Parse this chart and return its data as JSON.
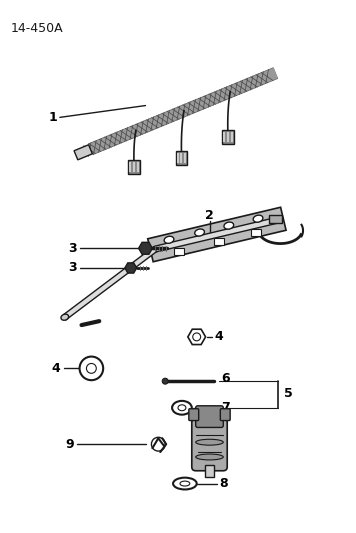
{
  "title": "14-450A",
  "background_color": "#ffffff",
  "line_color": "#1a1a1a",
  "part_color": "#aaaaaa",
  "dark_color": "#333333",
  "label_color": "#000000",
  "fig_width": 3.56,
  "fig_height": 5.33,
  "dpi": 100
}
